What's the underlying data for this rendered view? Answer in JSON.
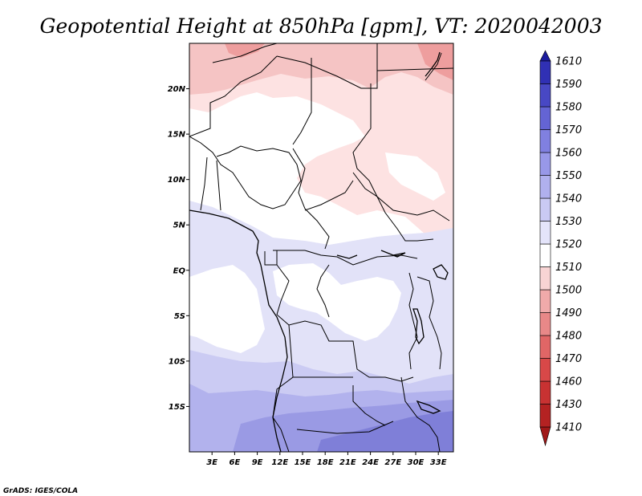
{
  "chart_data": {
    "type": "heatmap",
    "title": "Geopotential Height at 850hPa [gpm], VT: 2020042003",
    "variable": "Geopotential Height",
    "level": "850hPa",
    "units": "gpm",
    "valid_time": "2020042003",
    "x_axis": {
      "range": [
        0,
        35
      ],
      "ticks": [
        3,
        6,
        9,
        12,
        15,
        18,
        21,
        24,
        27,
        30,
        33
      ],
      "tick_labels": [
        "3E",
        "6E",
        "9E",
        "12E",
        "15E",
        "18E",
        "21E",
        "24E",
        "27E",
        "30E",
        "33E"
      ]
    },
    "y_axis": {
      "range": [
        -20,
        25
      ],
      "ticks": [
        20,
        15,
        10,
        5,
        0,
        -5,
        -10,
        -15
      ],
      "tick_labels": [
        "20N",
        "15N",
        "10N",
        "5N",
        "EQ",
        "5S",
        "10S",
        "15S"
      ]
    },
    "colorbar": {
      "levels": [
        1410,
        1430,
        1460,
        1470,
        1480,
        1490,
        1500,
        1510,
        1520,
        1530,
        1540,
        1550,
        1560,
        1570,
        1580,
        1590,
        1610
      ],
      "level_labels": [
        "1410",
        "1430",
        "1460",
        "1470",
        "1480",
        "1490",
        "1500",
        "1510",
        "1520",
        "1530",
        "1540",
        "1550",
        "1560",
        "1570",
        "1580",
        "1590",
        "1610"
      ],
      "colors": [
        "#a01818",
        "#b42222",
        "#c83232",
        "#d84848",
        "#e06666",
        "#e88888",
        "#f0aaaa",
        "#f8d4d4",
        "#ffffff",
        "#e4e4fa",
        "#cacaf4",
        "#b0b0ee",
        "#9898e8",
        "#8080e0",
        "#6464d4",
        "#4848c4",
        "#3030b4",
        "#1c1c9e"
      ],
      "extends": "both"
    },
    "field_bands": [
      {
        "value_range": [
          1500,
          1510
        ],
        "color": "#f4c8c8",
        "region": "far north 21N-25N"
      },
      {
        "value_range": [
          1500,
          1510
        ],
        "color": "#fde2e2",
        "region": "north and northeast 10N-21N"
      },
      {
        "value_range": [
          1510,
          1520
        ],
        "color": "#ffffff",
        "region": "west Africa 5N-15N and Atlantic 0-12S"
      },
      {
        "value_range": [
          1520,
          1530
        ],
        "color": "#e2e2f8",
        "region": "Gulf of Guinea and Congo basin 5N-10S"
      },
      {
        "value_range": [
          1530,
          1540
        ],
        "color": "#cbcbf3",
        "region": "southern Africa 10S-14S"
      },
      {
        "value_range": [
          1540,
          1550
        ],
        "color": "#b0b0ec",
        "region": "15S-18S"
      },
      {
        "value_range": [
          1550,
          1560
        ],
        "color": "#8f8fe0",
        "region": "far southeast 18S-20S"
      }
    ]
  },
  "credit": "GrADS: IGES/COLA"
}
